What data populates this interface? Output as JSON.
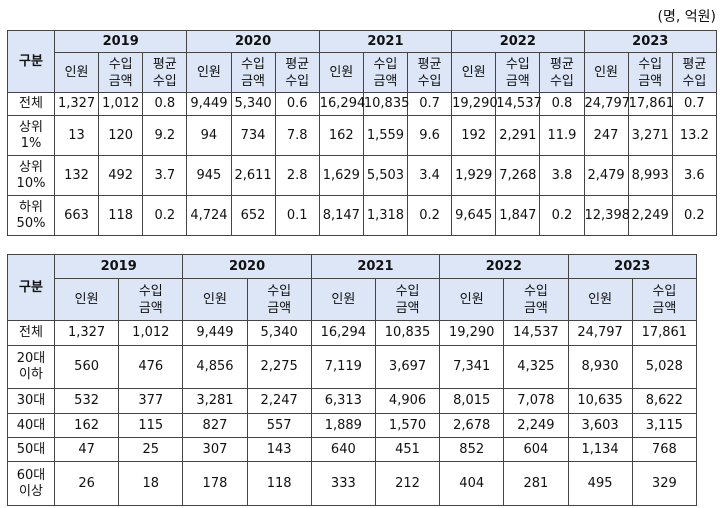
{
  "unit_note": "(명, 억원)",
  "table1": {
    "corner": "구분",
    "years": [
      "2019",
      "2020",
      "2021",
      "2022",
      "2023"
    ],
    "subheaders": [
      "인원",
      "수입\n금액",
      "평균\n수입"
    ],
    "rows": [
      {
        "label": "전체",
        "values": [
          "1,327",
          "1,012",
          "0.8",
          "9,449",
          "5,340",
          "0.6",
          "16,294",
          "10,835",
          "0.7",
          "19,290",
          "14,537",
          "0.8",
          "24,797",
          "17,861",
          "0.7"
        ]
      },
      {
        "label": "상위\n1%",
        "values": [
          "13",
          "120",
          "9.2",
          "94",
          "734",
          "7.8",
          "162",
          "1,559",
          "9.6",
          "192",
          "2,291",
          "11.9",
          "247",
          "3,271",
          "13.2"
        ]
      },
      {
        "label": "상위\n10%",
        "values": [
          "132",
          "492",
          "3.7",
          "945",
          "2,611",
          "2.8",
          "1,629",
          "5,503",
          "3.4",
          "1,929",
          "7,268",
          "3.8",
          "2,479",
          "8,993",
          "3.6"
        ]
      },
      {
        "label": "하위\n50%",
        "values": [
          "663",
          "118",
          "0.2",
          "4,724",
          "652",
          "0.1",
          "8,147",
          "1,318",
          "0.2",
          "9,645",
          "1,847",
          "0.2",
          "12,398",
          "2,249",
          "0.2"
        ]
      }
    ]
  },
  "table2": {
    "corner": "구분",
    "years": [
      "2019",
      "2020",
      "2021",
      "2022",
      "2023"
    ],
    "subheaders": [
      "인원",
      "수입\n금액"
    ],
    "rows": [
      {
        "label": "전체",
        "values": [
          "1,327",
          "1,012",
          "9,449",
          "5,340",
          "16,294",
          "10,835",
          "19,290",
          "14,537",
          "24,797",
          "17,861"
        ]
      },
      {
        "label": "20대\n이하",
        "values": [
          "560",
          "476",
          "4,856",
          "2,275",
          "7,119",
          "3,697",
          "7,341",
          "4,325",
          "8,930",
          "5,028"
        ]
      },
      {
        "label": "30대",
        "values": [
          "532",
          "377",
          "3,281",
          "2,247",
          "6,313",
          "4,906",
          "8,015",
          "7,078",
          "10,635",
          "8,622"
        ]
      },
      {
        "label": "40대",
        "values": [
          "162",
          "115",
          "827",
          "557",
          "1,889",
          "1,570",
          "2,678",
          "2,249",
          "3,603",
          "3,115"
        ]
      },
      {
        "label": "50대",
        "values": [
          "47",
          "25",
          "307",
          "143",
          "640",
          "451",
          "852",
          "604",
          "1,134",
          "768"
        ]
      },
      {
        "label": "60대\n이상",
        "values": [
          "26",
          "18",
          "178",
          "118",
          "333",
          "212",
          "404",
          "281",
          "495",
          "329"
        ]
      }
    ]
  },
  "colors": {
    "header_bg": "#dce6f6",
    "border": "#444444"
  }
}
